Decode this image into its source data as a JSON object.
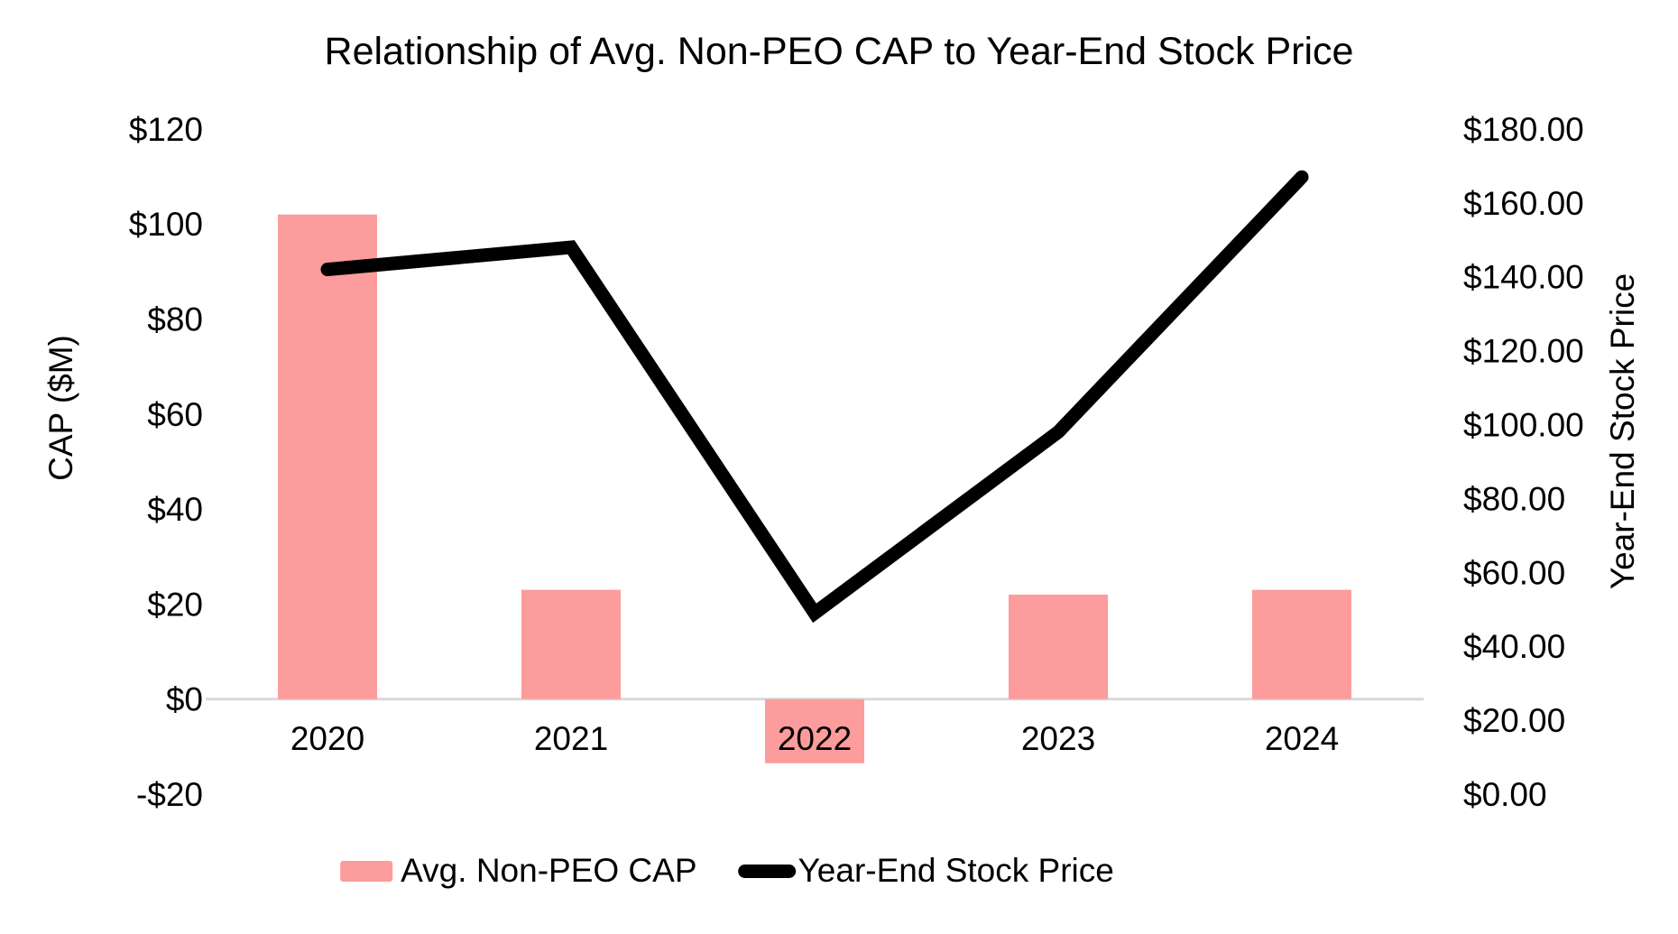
{
  "title": "Relationship of Avg. Non-PEO CAP to Year-End Stock Price",
  "colors": {
    "bar": "#FC9C9C",
    "line": "#000000",
    "gridline": "#D9D9D9",
    "text": "#000000",
    "background": "#FFFFFF"
  },
  "legend": {
    "items": [
      {
        "label": "Avg. Non-PEO CAP",
        "swatch": "bar"
      },
      {
        "label": "Year-End Stock Price",
        "swatch": "line"
      }
    ],
    "position": "bottom"
  },
  "chart_data": {
    "type": "bar+line combo",
    "title": "Relationship of Avg. Non-PEO CAP to Year-End Stock Price",
    "categories": [
      "2020",
      "2021",
      "2022",
      "2023",
      "2024"
    ],
    "series": [
      {
        "name": "Avg. Non-PEO CAP",
        "type": "bar",
        "axis": "left",
        "color": "#FC9C9C",
        "values": [
          102,
          23,
          -13.5,
          22,
          23
        ]
      },
      {
        "name": "Year-End Stock Price",
        "type": "line",
        "axis": "right",
        "color": "#000000",
        "values": [
          142,
          148,
          49,
          98,
          167
        ]
      }
    ],
    "left_axis": {
      "label": "CAP ($M)",
      "min": -20,
      "max": 120,
      "step": 20,
      "tick_labels": [
        "$120",
        "$100",
        "$80",
        "$60",
        "$40",
        "$20",
        "$0",
        "-$20"
      ]
    },
    "right_axis": {
      "label": "Year-End Stock Price",
      "min": 0,
      "max": 180,
      "step": 20,
      "tick_labels": [
        "$180.00",
        "$160.00",
        "$140.00",
        "$120.00",
        "$100.00",
        "$80.00",
        "$60.00",
        "$40.00",
        "$20.00",
        "$0.00"
      ]
    },
    "grid": "zero-line-only",
    "legend_position": "bottom"
  }
}
